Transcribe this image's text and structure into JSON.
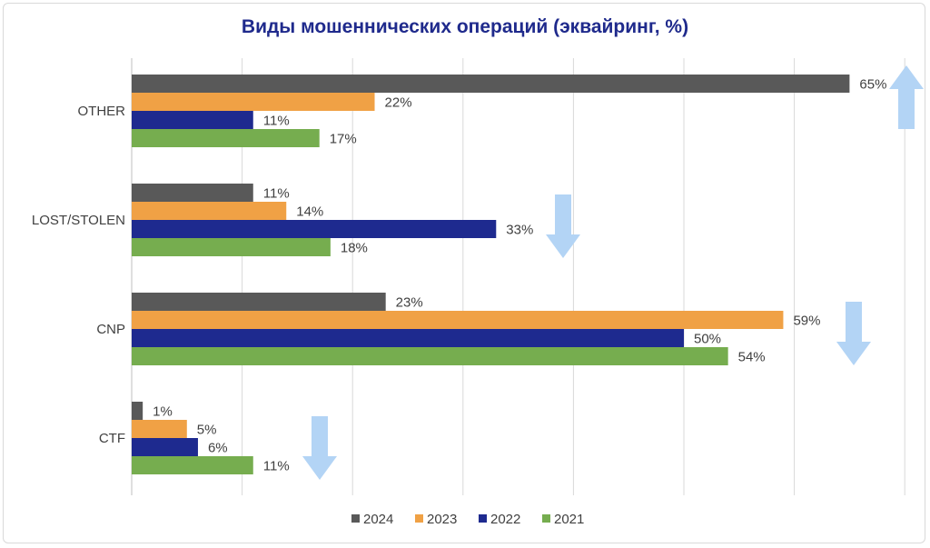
{
  "chart_data": {
    "type": "bar",
    "orientation": "horizontal",
    "title": "Виды мошеннических операций (эквайринг, %)",
    "categories": [
      "OTHER",
      "LOST/STOLEN",
      "CNP",
      "CTF"
    ],
    "series": [
      {
        "name": "2024",
        "color": "#595959",
        "values": [
          65,
          11,
          23,
          1
        ],
        "labels": [
          "65%",
          "11%",
          "23%",
          "1%"
        ]
      },
      {
        "name": "2023",
        "color": "#f0a145",
        "values": [
          22,
          14,
          59,
          5
        ],
        "labels": [
          "22%",
          "14%",
          "59%",
          "5%"
        ]
      },
      {
        "name": "2022",
        "color": "#1e2a8f",
        "values": [
          11,
          33,
          50,
          6
        ],
        "labels": [
          "11%",
          "33%",
          "50%",
          "6%"
        ]
      },
      {
        "name": "2021",
        "color": "#76ad4f",
        "values": [
          17,
          18,
          54,
          11
        ],
        "labels": [
          "17%",
          "18%",
          "54%",
          "11%"
        ]
      }
    ],
    "xlim": [
      0,
      70
    ],
    "grid": true,
    "legend_position": "bottom",
    "trend_arrows": [
      {
        "category": "OTHER",
        "direction": "up"
      },
      {
        "category": "LOST/STOLEN",
        "direction": "down"
      },
      {
        "category": "CNP",
        "direction": "down"
      },
      {
        "category": "CTF",
        "direction": "down"
      }
    ],
    "arrow_color": "#b3d4f5"
  }
}
